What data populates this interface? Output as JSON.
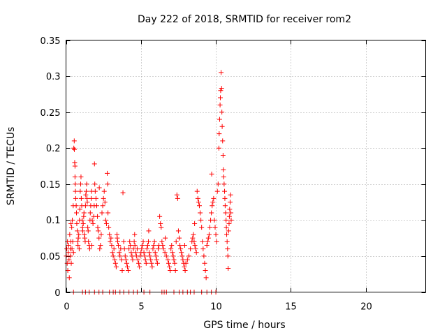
{
  "chart_data": {
    "type": "scatter",
    "title": "Day 222 of 2018, SRMTID for receiver rom2",
    "xlabel": "GPS time / hours",
    "ylabel": "SRMTID / TECUs",
    "xlim": [
      0,
      24
    ],
    "ylim": [
      0,
      0.35
    ],
    "xticks": [
      0,
      5,
      10,
      15,
      20
    ],
    "xtick_labels": [
      "0",
      "5",
      "10",
      "15",
      "20"
    ],
    "yticks": [
      0,
      0.05,
      0.1,
      0.15,
      0.2,
      0.25,
      0.3,
      0.35
    ],
    "ytick_labels": [
      "0",
      "0.05",
      "0.1",
      "0.15",
      "0.2",
      "0.25",
      "0.3",
      "0.35"
    ],
    "grid": true,
    "marker": "+",
    "color": "#ff0000",
    "series": [
      {
        "name": "SRMTID",
        "points": [
          [
            0.02,
            0.05
          ],
          [
            0.05,
            0.06
          ],
          [
            0.08,
            0.04
          ],
          [
            0.1,
            0.07
          ],
          [
            0.12,
            0.03
          ],
          [
            0.15,
            0.055
          ],
          [
            0.18,
            0.065
          ],
          [
            0.2,
            0.045
          ],
          [
            0.22,
            0.02
          ],
          [
            0.25,
            0.08
          ],
          [
            0.28,
            0.06
          ],
          [
            0.3,
            0.05
          ],
          [
            0.32,
            0.07
          ],
          [
            0.35,
            0.04
          ],
          [
            0.38,
            0.09
          ],
          [
            0.4,
            0.06
          ],
          [
            0.42,
            0.1
          ],
          [
            0.45,
            0.07
          ],
          [
            0.48,
            0.12
          ],
          [
            0.5,
            0.055
          ],
          [
            0.52,
            0.2
          ],
          [
            0.55,
            0.21
          ],
          [
            0.56,
            0.198
          ],
          [
            0.58,
            0.18
          ],
          [
            0.6,
            0.175
          ],
          [
            0.6,
            0.16
          ],
          [
            0.62,
            0.15
          ],
          [
            0.63,
            0.14
          ],
          [
            0.65,
            0.13
          ],
          [
            0.68,
            0.12
          ],
          [
            0.7,
            0.11
          ],
          [
            0.72,
            0.095
          ],
          [
            0.75,
            0.085
          ],
          [
            0.78,
            0.07
          ],
          [
            0.8,
            0.065
          ],
          [
            0.82,
            0.075
          ],
          [
            0.85,
            0.08
          ],
          [
            0.88,
            0.06
          ],
          [
            0.9,
            0.1
          ],
          [
            0.92,
            0.115
          ],
          [
            0.95,
            0.14
          ],
          [
            0.98,
            0.15
          ],
          [
            1.0,
            0.16
          ],
          [
            1.02,
            0.13
          ],
          [
            1.05,
            0.12
          ],
          [
            1.08,
            0.1
          ],
          [
            1.1,
            0.09
          ],
          [
            1.12,
            0.085
          ],
          [
            1.15,
            0.095
          ],
          [
            1.18,
            0.105
          ],
          [
            1.2,
            0.11
          ],
          [
            1.22,
            0.08
          ],
          [
            1.25,
            0.075
          ],
          [
            1.28,
            0.07
          ],
          [
            1.3,
            0.12
          ],
          [
            1.32,
            0.135
          ],
          [
            1.35,
            0.14
          ],
          [
            1.38,
            0.15
          ],
          [
            1.4,
            0.13
          ],
          [
            1.42,
            0.125
          ],
          [
            1.45,
            0.09
          ],
          [
            1.48,
            0.085
          ],
          [
            1.5,
            0.07
          ],
          [
            1.55,
            0.065
          ],
          [
            1.58,
            0.06
          ],
          [
            1.6,
            0.1
          ],
          [
            1.62,
            0.11
          ],
          [
            1.65,
            0.12
          ],
          [
            1.68,
            0.13
          ],
          [
            1.7,
            0.14
          ],
          [
            1.75,
            0.1
          ],
          [
            1.8,
            0.095
          ],
          [
            1.85,
            0.105
          ],
          [
            1.88,
            0.12
          ],
          [
            1.9,
            0.178
          ],
          [
            1.92,
            0.15
          ],
          [
            1.95,
            0.14
          ],
          [
            2.0,
            0.13
          ],
          [
            2.05,
            0.12
          ],
          [
            2.1,
            0.105
          ],
          [
            2.12,
            0.09
          ],
          [
            2.15,
            0.085
          ],
          [
            2.2,
            0.075
          ],
          [
            2.25,
            0.06
          ],
          [
            2.3,
            0.065
          ],
          [
            2.35,
            0.08
          ],
          [
            2.4,
            0.11
          ],
          [
            2.45,
            0.12
          ],
          [
            2.5,
            0.13
          ],
          [
            2.55,
            0.14
          ],
          [
            2.6,
            0.125
          ],
          [
            2.65,
            0.1
          ],
          [
            2.7,
            0.095
          ],
          [
            2.75,
            0.165
          ],
          [
            2.78,
            0.15
          ],
          [
            2.8,
            0.11
          ],
          [
            2.85,
            0.09
          ],
          [
            2.9,
            0.08
          ],
          [
            2.95,
            0.07
          ],
          [
            3.0,
            0.075
          ],
          [
            3.05,
            0.065
          ],
          [
            3.1,
            0.055
          ],
          [
            3.15,
            0.05
          ],
          [
            3.2,
            0.06
          ],
          [
            3.25,
            0.045
          ],
          [
            3.3,
            0.04
          ],
          [
            3.35,
            0.035
          ],
          [
            3.4,
            0.08
          ],
          [
            3.45,
            0.07
          ],
          [
            3.5,
            0.065
          ],
          [
            3.55,
            0.055
          ],
          [
            3.6,
            0.05
          ],
          [
            3.65,
            0.06
          ],
          [
            3.7,
            0.045
          ],
          [
            3.75,
            0.03
          ],
          [
            3.8,
            0.138
          ],
          [
            3.85,
            0.07
          ],
          [
            3.9,
            0.06
          ],
          [
            3.95,
            0.05
          ],
          [
            4.0,
            0.045
          ],
          [
            4.05,
            0.04
          ],
          [
            4.1,
            0.035
          ],
          [
            4.15,
            0.03
          ],
          [
            4.2,
            0.06
          ],
          [
            4.25,
            0.07
          ],
          [
            4.3,
            0.065
          ],
          [
            4.35,
            0.055
          ],
          [
            4.4,
            0.05
          ],
          [
            4.45,
            0.045
          ],
          [
            4.5,
            0.06
          ],
          [
            4.55,
            0.07
          ],
          [
            4.6,
            0.065
          ],
          [
            4.65,
            0.055
          ],
          [
            4.7,
            0.05
          ],
          [
            4.75,
            0.06
          ],
          [
            4.8,
            0.045
          ],
          [
            4.85,
            0.04
          ],
          [
            4.9,
            0.035
          ],
          [
            4.95,
            0.05
          ],
          [
            5.0,
            0.055
          ],
          [
            5.05,
            0.06
          ],
          [
            5.1,
            0.065
          ],
          [
            5.15,
            0.07
          ],
          [
            5.2,
            0.055
          ],
          [
            5.25,
            0.05
          ],
          [
            5.3,
            0.045
          ],
          [
            5.35,
            0.04
          ],
          [
            5.4,
            0.06
          ],
          [
            5.45,
            0.065
          ],
          [
            5.5,
            0.07
          ],
          [
            5.55,
            0.055
          ],
          [
            5.6,
            0.05
          ],
          [
            5.65,
            0.045
          ],
          [
            5.7,
            0.04
          ],
          [
            5.75,
            0.035
          ],
          [
            5.8,
            0.06
          ],
          [
            5.85,
            0.065
          ],
          [
            5.9,
            0.07
          ],
          [
            5.95,
            0.055
          ],
          [
            6.0,
            0.05
          ],
          [
            6.05,
            0.045
          ],
          [
            6.1,
            0.04
          ],
          [
            6.15,
            0.06
          ],
          [
            6.2,
            0.065
          ],
          [
            6.25,
            0.105
          ],
          [
            6.3,
            0.095
          ],
          [
            6.35,
            0.09
          ],
          [
            6.4,
            0.07
          ],
          [
            6.45,
            0.065
          ],
          [
            6.5,
            0.06
          ],
          [
            6.6,
            0.055
          ],
          [
            6.7,
            0.05
          ],
          [
            6.8,
            0.045
          ],
          [
            6.85,
            0.04
          ],
          [
            6.9,
            0.035
          ],
          [
            6.95,
            0.03
          ],
          [
            7.0,
            0.06
          ],
          [
            7.05,
            0.065
          ],
          [
            7.1,
            0.055
          ],
          [
            7.15,
            0.05
          ],
          [
            7.2,
            0.045
          ],
          [
            7.25,
            0.04
          ],
          [
            7.3,
            0.03
          ],
          [
            7.35,
            0.07
          ],
          [
            7.4,
            0.135
          ],
          [
            7.45,
            0.13
          ],
          [
            7.5,
            0.085
          ],
          [
            7.55,
            0.075
          ],
          [
            7.6,
            0.065
          ],
          [
            7.65,
            0.06
          ],
          [
            7.7,
            0.055
          ],
          [
            7.75,
            0.05
          ],
          [
            7.8,
            0.045
          ],
          [
            7.85,
            0.04
          ],
          [
            7.9,
            0.035
          ],
          [
            7.95,
            0.03
          ],
          [
            8.0,
            0.04
          ],
          [
            8.1,
            0.045
          ],
          [
            8.2,
            0.05
          ],
          [
            8.3,
            0.06
          ],
          [
            8.4,
            0.07
          ],
          [
            8.45,
            0.075
          ],
          [
            8.5,
            0.08
          ],
          [
            8.55,
            0.07
          ],
          [
            8.6,
            0.065
          ],
          [
            8.65,
            0.06
          ],
          [
            8.7,
            0.055
          ],
          [
            8.75,
            0.14
          ],
          [
            8.8,
            0.13
          ],
          [
            8.85,
            0.125
          ],
          [
            8.9,
            0.12
          ],
          [
            8.95,
            0.11
          ],
          [
            9.0,
            0.1
          ],
          [
            9.05,
            0.09
          ],
          [
            9.1,
            0.07
          ],
          [
            9.15,
            0.06
          ],
          [
            9.2,
            0.05
          ],
          [
            9.25,
            0.04
          ],
          [
            9.3,
            0.03
          ],
          [
            9.35,
            0.02
          ],
          [
            9.4,
            0.065
          ],
          [
            9.45,
            0.07
          ],
          [
            9.5,
            0.075
          ],
          [
            9.55,
            0.08
          ],
          [
            9.6,
            0.09
          ],
          [
            9.65,
            0.1
          ],
          [
            9.7,
            0.11
          ],
          [
            9.75,
            0.12
          ],
          [
            9.8,
            0.125
          ],
          [
            9.85,
            0.13
          ],
          [
            9.9,
            0.1
          ],
          [
            9.95,
            0.09
          ],
          [
            10.0,
            0.08
          ],
          [
            10.05,
            0.07
          ],
          [
            10.1,
            0.14
          ],
          [
            10.15,
            0.15
          ],
          [
            10.2,
            0.2
          ],
          [
            10.22,
            0.22
          ],
          [
            10.25,
            0.24
          ],
          [
            10.28,
            0.26
          ],
          [
            10.3,
            0.27
          ],
          [
            10.32,
            0.28
          ],
          [
            10.35,
            0.305
          ],
          [
            10.38,
            0.283
          ],
          [
            10.4,
            0.25
          ],
          [
            10.42,
            0.23
          ],
          [
            10.45,
            0.21
          ],
          [
            10.48,
            0.19
          ],
          [
            10.5,
            0.17
          ],
          [
            10.52,
            0.16
          ],
          [
            10.55,
            0.15
          ],
          [
            10.58,
            0.14
          ],
          [
            10.6,
            0.13
          ],
          [
            10.62,
            0.12
          ],
          [
            10.65,
            0.11
          ],
          [
            10.68,
            0.1
          ],
          [
            10.7,
            0.09
          ],
          [
            10.72,
            0.08
          ],
          [
            10.75,
            0.07
          ],
          [
            10.78,
            0.06
          ],
          [
            10.8,
            0.05
          ],
          [
            10.82,
            0.033
          ],
          [
            10.85,
            0.085
          ],
          [
            10.88,
            0.095
          ],
          [
            10.9,
            0.105
          ],
          [
            10.92,
            0.115
          ],
          [
            10.95,
            0.125
          ],
          [
            10.98,
            0.135
          ],
          [
            11.0,
            0.11
          ],
          [
            11.02,
            0.1
          ],
          [
            9.72,
            0.164
          ],
          [
            0.33,
            0.095
          ],
          [
            1.72,
            0.065
          ],
          [
            2.22,
            0.145
          ],
          [
            3.42,
            0.075
          ],
          [
            4.58,
            0.08
          ],
          [
            5.52,
            0.085
          ],
          [
            6.62,
            0.075
          ],
          [
            7.92,
            0.065
          ],
          [
            8.58,
            0.095
          ],
          [
            0.5,
            0
          ],
          [
            1.1,
            0
          ],
          [
            1.3,
            0
          ],
          [
            1.55,
            0
          ],
          [
            1.9,
            0
          ],
          [
            2.2,
            0
          ],
          [
            2.45,
            0
          ],
          [
            2.9,
            0
          ],
          [
            3.15,
            0
          ],
          [
            3.3,
            0
          ],
          [
            3.6,
            0
          ],
          [
            3.85,
            0
          ],
          [
            4.2,
            0
          ],
          [
            4.5,
            0
          ],
          [
            4.75,
            0
          ],
          [
            5.2,
            0
          ],
          [
            5.6,
            0
          ],
          [
            6.4,
            0
          ],
          [
            6.55,
            0
          ],
          [
            6.7,
            0
          ],
          [
            7.2,
            0
          ],
          [
            7.55,
            0
          ],
          [
            7.8,
            0
          ],
          [
            8.1,
            0
          ],
          [
            8.3,
            0
          ],
          [
            8.55,
            0
          ],
          [
            9.05,
            0
          ],
          [
            9.4,
            0
          ],
          [
            9.7,
            0
          ],
          [
            10.0,
            0
          ]
        ]
      }
    ]
  }
}
